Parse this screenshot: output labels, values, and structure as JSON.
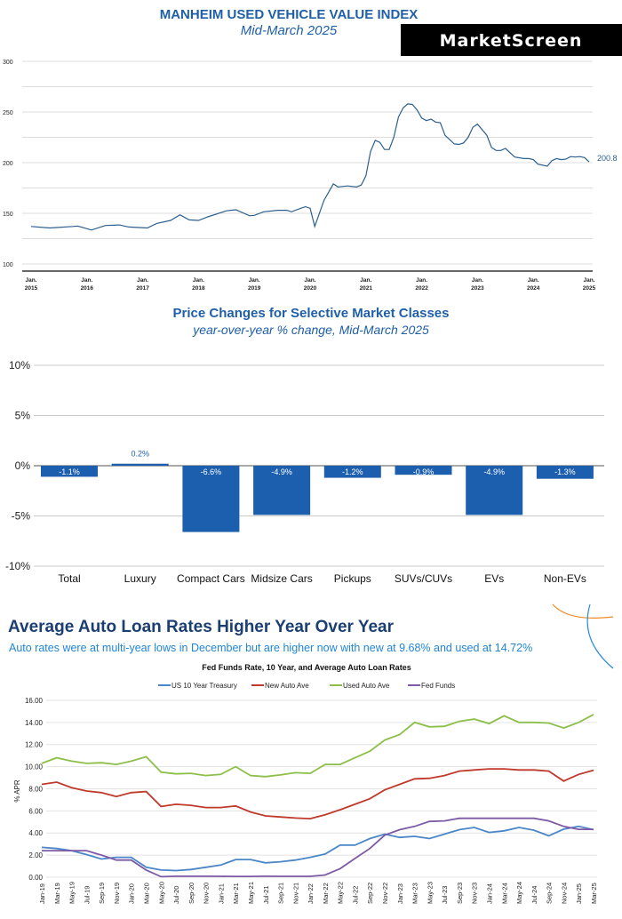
{
  "logo": {
    "text": "MarketScreen"
  },
  "colors": {
    "blue_title": "#1f5fa8",
    "bar": "#1c5fae",
    "line1": "#2c5f8f",
    "treasury": "#4a86c8",
    "new_auto": "#c0392b",
    "used_auto": "#8cbf4a",
    "fed_funds": "#7e5aa6",
    "accent_orange": "#f08a24",
    "accent_blue": "#2a8ad8"
  },
  "chart_data": [
    {
      "type": "line",
      "title": "MANHEIM USED VEHICLE VALUE INDEX",
      "subtitle": "Mid-March 2025",
      "ylim": [
        100,
        300
      ],
      "yticks": [
        "100",
        "150",
        "200",
        "250",
        "300"
      ],
      "xticks": [
        [
          "Jan.",
          "2015"
        ],
        [
          "Jan.",
          "2016"
        ],
        [
          "Jan.",
          "2017"
        ],
        [
          "Jan.",
          "2018"
        ],
        [
          "Jan.",
          "2019"
        ],
        [
          "Jan.",
          "2020"
        ],
        [
          "Jan.",
          "2021"
        ],
        [
          "Jan.",
          "2022"
        ],
        [
          "Jan.",
          "2023"
        ],
        [
          "Jan.",
          "2024"
        ],
        [
          "Jan.",
          "2025"
        ]
      ],
      "grid": true,
      "end_label": "200.8",
      "points": [
        [
          "2015-01",
          137
        ],
        [
          "2015-05",
          135.5
        ],
        [
          "2015-10",
          137
        ],
        [
          "2015-11",
          137.5
        ],
        [
          "2016-02",
          133.5
        ],
        [
          "2016-05",
          138
        ],
        [
          "2016-08",
          138.5
        ],
        [
          "2016-10",
          136.5
        ],
        [
          "2017-02",
          135.5
        ],
        [
          "2017-04",
          140
        ],
        [
          "2017-07",
          143
        ],
        [
          "2017-09",
          148.5
        ],
        [
          "2017-11",
          143.5
        ],
        [
          "2018-01",
          143
        ],
        [
          "2018-03",
          146.5
        ],
        [
          "2018-07",
          152.5
        ],
        [
          "2018-09",
          153.5
        ],
        [
          "2018-12",
          147.5
        ],
        [
          "2019-01",
          148
        ],
        [
          "2019-03",
          151.5
        ],
        [
          "2019-06",
          153
        ],
        [
          "2019-08",
          153
        ],
        [
          "2019-09",
          151.5
        ],
        [
          "2019-11",
          155
        ],
        [
          "2019-12",
          156.5
        ],
        [
          "2020-01",
          155
        ],
        [
          "2020-02",
          137
        ],
        [
          "2020-04",
          163
        ],
        [
          "2020-06",
          179
        ],
        [
          "2020-07",
          176
        ],
        [
          "2020-09",
          177
        ],
        [
          "2020-11",
          176
        ],
        [
          "2020-12",
          178
        ],
        [
          "2021-01",
          187
        ],
        [
          "2021-02",
          211
        ],
        [
          "2021-03",
          222
        ],
        [
          "2021-04",
          220
        ],
        [
          "2021-05",
          213
        ],
        [
          "2021-06",
          213
        ],
        [
          "2021-07",
          225
        ],
        [
          "2021-08",
          245
        ],
        [
          "2021-09",
          254
        ],
        [
          "2021-10",
          258
        ],
        [
          "2021-11",
          257.5
        ],
        [
          "2021-12",
          252
        ],
        [
          "2022-01",
          244
        ],
        [
          "2022-02",
          241.5
        ],
        [
          "2022-03",
          243
        ],
        [
          "2022-04",
          240
        ],
        [
          "2022-05",
          239.5
        ],
        [
          "2022-06",
          227
        ],
        [
          "2022-08",
          218.5
        ],
        [
          "2022-09",
          218
        ],
        [
          "2022-10",
          219.5
        ],
        [
          "2022-11",
          225
        ],
        [
          "2022-12",
          235
        ],
        [
          "2023-01",
          238
        ],
        [
          "2023-03",
          227
        ],
        [
          "2023-04",
          215
        ],
        [
          "2023-05",
          212
        ],
        [
          "2023-06",
          212
        ],
        [
          "2023-07",
          214
        ],
        [
          "2023-09",
          205.5
        ],
        [
          "2023-11",
          204
        ],
        [
          "2023-12",
          204
        ],
        [
          "2024-01",
          203
        ],
        [
          "2024-02",
          198.5
        ],
        [
          "2024-04",
          196.5
        ],
        [
          "2024-05",
          202
        ],
        [
          "2024-06",
          204
        ],
        [
          "2024-07",
          203
        ],
        [
          "2024-08",
          203.5
        ],
        [
          "2024-09",
          206
        ],
        [
          "2024-10",
          205.5
        ],
        [
          "2024-11",
          206
        ],
        [
          "2024-12",
          205
        ],
        [
          "2025-01",
          200.8
        ]
      ]
    },
    {
      "type": "bar",
      "title": "Price Changes for Selective Market Classes",
      "subtitle": "year-over-year % change, Mid-March 2025",
      "ylim": [
        -10,
        10
      ],
      "yticks": [
        "-10%",
        "-5%",
        "0%",
        "5%",
        "10%"
      ],
      "grid": true,
      "categories": [
        "Total",
        "Luxury",
        "Compact Cars",
        "Midsize Cars",
        "Pickups",
        "SUVs/CUVs",
        "EVs",
        "Non-EVs"
      ],
      "values": [
        -1.1,
        0.2,
        -6.6,
        -4.9,
        -1.2,
        -0.9,
        -4.9,
        -1.3
      ],
      "data_labels": [
        "-1.1%",
        "0.2%",
        "-6.6%",
        "-4.9%",
        "-1.2%",
        "-0.9%",
        "-4.9%",
        "-1.3%"
      ]
    },
    {
      "type": "line",
      "headline": "Average Auto Loan Rates Higher Year Over Year",
      "subheadline": "Auto rates were at multi-year lows in December but are higher now with new at 9.68% and used at 14.72%",
      "title": "Fed Funds Rate, 10 Year, and Average Auto Loan Rates",
      "ylabel": "% APR",
      "ylim": [
        0,
        16
      ],
      "yticks": [
        "0.00",
        "2.00",
        "4.00",
        "6.00",
        "8.00",
        "10.00",
        "12.00",
        "14.00",
        "16.00"
      ],
      "grid": true,
      "legend": "top",
      "x": [
        "Jan-19",
        "Mar-19",
        "May-19",
        "Jul-19",
        "Sep-19",
        "Nov-19",
        "Jan-20",
        "Mar-20",
        "May-20",
        "Jul-20",
        "Sep-20",
        "Nov-20",
        "Jan-21",
        "Mar-21",
        "May-21",
        "Jul-21",
        "Sep-21",
        "Nov-21",
        "Jan-22",
        "Mar-22",
        "May-22",
        "Jul-22",
        "Sep-22",
        "Nov-22",
        "Jan-23",
        "Mar-23",
        "May-23",
        "Jul-23",
        "Sep-23",
        "Nov-23",
        "Jan-24",
        "Mar-24",
        "May-24",
        "Jul-24",
        "Sep-24",
        "Nov-24",
        "Jan-25",
        "Mar-25"
      ],
      "series": [
        {
          "name": "US 10 Year Treasury",
          "values": [
            2.7,
            2.6,
            2.4,
            2.05,
            1.65,
            1.8,
            1.8,
            0.9,
            0.65,
            0.6,
            0.7,
            0.9,
            1.1,
            1.6,
            1.6,
            1.3,
            1.4,
            1.55,
            1.8,
            2.1,
            2.9,
            2.9,
            3.5,
            3.9,
            3.6,
            3.7,
            3.5,
            3.9,
            4.3,
            4.5,
            4.05,
            4.2,
            4.5,
            4.25,
            3.75,
            4.35,
            4.6,
            4.3
          ]
        },
        {
          "name": "New Auto Ave",
          "values": [
            8.4,
            8.6,
            8.1,
            7.8,
            7.65,
            7.3,
            7.65,
            7.75,
            6.4,
            6.6,
            6.5,
            6.3,
            6.3,
            6.45,
            5.9,
            5.55,
            5.45,
            5.35,
            5.3,
            5.65,
            6.1,
            6.6,
            7.1,
            7.9,
            8.4,
            8.9,
            8.95,
            9.2,
            9.6,
            9.7,
            9.8,
            9.8,
            9.7,
            9.7,
            9.6,
            8.7,
            9.3,
            9.68
          ]
        },
        {
          "name": "Used Auto Ave",
          "values": [
            10.3,
            10.8,
            10.5,
            10.3,
            10.35,
            10.2,
            10.5,
            10.9,
            9.5,
            9.35,
            9.4,
            9.2,
            9.3,
            10.0,
            9.2,
            9.1,
            9.25,
            9.45,
            9.4,
            10.2,
            10.2,
            10.8,
            11.4,
            12.4,
            12.9,
            14.0,
            13.6,
            13.65,
            14.1,
            14.3,
            13.9,
            14.6,
            14.0,
            14.0,
            13.95,
            13.5,
            14.0,
            14.72
          ]
        },
        {
          "name": "Fed Funds",
          "values": [
            2.4,
            2.4,
            2.4,
            2.4,
            2.0,
            1.55,
            1.55,
            0.65,
            0.05,
            0.09,
            0.09,
            0.09,
            0.08,
            0.07,
            0.07,
            0.09,
            0.08,
            0.08,
            0.08,
            0.2,
            0.77,
            1.7,
            2.6,
            3.8,
            4.3,
            4.6,
            5.05,
            5.1,
            5.33,
            5.33,
            5.33,
            5.33,
            5.33,
            5.33,
            5.1,
            4.6,
            4.33,
            4.33
          ]
        }
      ]
    }
  ]
}
